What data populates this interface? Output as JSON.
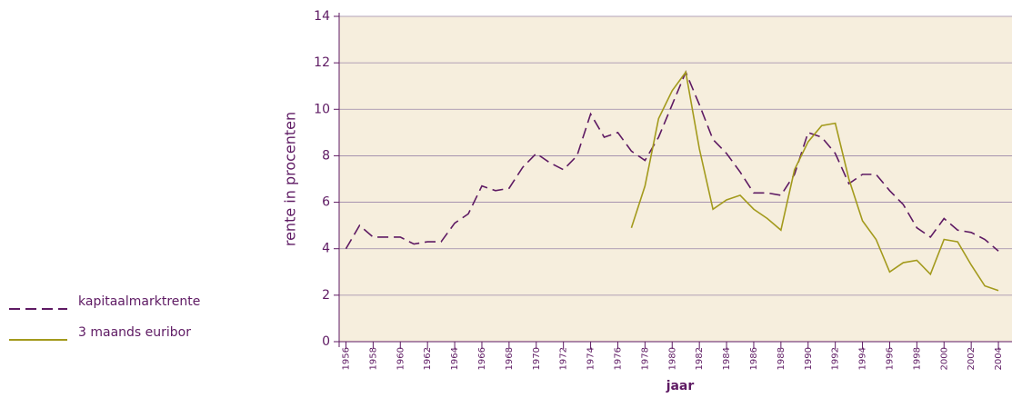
{
  "chart_data": {
    "type": "line",
    "ylabel": "rente in procenten",
    "xlabel": "jaar",
    "x": [
      1956,
      1957,
      1958,
      1959,
      1960,
      1961,
      1962,
      1963,
      1964,
      1965,
      1966,
      1967,
      1968,
      1969,
      1970,
      1971,
      1972,
      1973,
      1974,
      1975,
      1976,
      1977,
      1978,
      1979,
      1980,
      1981,
      1982,
      1983,
      1984,
      1985,
      1986,
      1987,
      1988,
      1989,
      1990,
      1991,
      1992,
      1993,
      1994,
      1995,
      1996,
      1997,
      1998,
      1999,
      2000,
      2001,
      2002,
      2003,
      2004
    ],
    "series": [
      {
        "name": "kapitaalmarktrente",
        "color": "#5e1a63",
        "dash": true,
        "values": [
          4.0,
          5.0,
          4.5,
          4.5,
          4.5,
          4.2,
          4.3,
          4.3,
          5.1,
          5.5,
          6.7,
          6.5,
          6.6,
          7.5,
          8.1,
          7.7,
          7.4,
          8.0,
          9.8,
          8.8,
          9.0,
          8.2,
          7.8,
          8.8,
          10.2,
          11.6,
          10.2,
          8.7,
          8.1,
          7.3,
          6.4,
          6.4,
          6.3,
          7.2,
          9.0,
          8.8,
          8.1,
          6.8,
          7.2,
          7.2,
          6.5,
          5.9,
          4.9,
          4.5,
          5.3,
          4.8,
          4.7,
          4.4,
          3.9
        ]
      },
      {
        "name": "3 maands euribor",
        "color": "#a39a1c",
        "dash": false,
        "values": [
          null,
          null,
          null,
          null,
          null,
          null,
          null,
          null,
          null,
          null,
          null,
          null,
          null,
          null,
          null,
          null,
          null,
          null,
          null,
          null,
          null,
          4.9,
          6.7,
          9.6,
          10.8,
          11.6,
          8.3,
          5.7,
          6.1,
          6.3,
          5.7,
          5.3,
          4.8,
          7.4,
          8.6,
          9.3,
          9.4,
          7.0,
          5.2,
          4.4,
          3.0,
          3.4,
          3.5,
          2.9,
          4.4,
          4.3,
          3.3,
          2.4,
          2.2
        ]
      }
    ],
    "xlim": [
      1955.5,
      2005
    ],
    "xticks": [
      1956,
      1958,
      1960,
      1962,
      1964,
      1966,
      1968,
      1970,
      1972,
      1974,
      1976,
      1978,
      1980,
      1982,
      1984,
      1986,
      1988,
      1990,
      1992,
      1994,
      1996,
      1998,
      2000,
      2002,
      2004
    ],
    "ylim": [
      0,
      14
    ],
    "yticks": [
      0,
      2,
      4,
      6,
      8,
      10,
      12,
      14
    ],
    "grid": true
  }
}
